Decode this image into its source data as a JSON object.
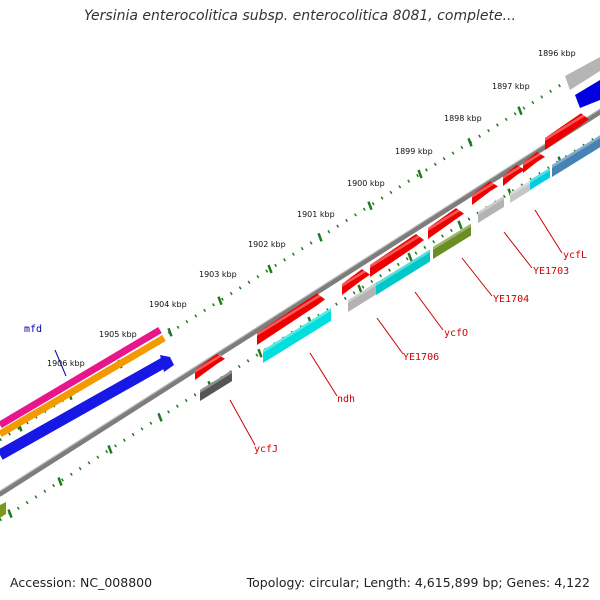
{
  "title": "Yersinia enterocolitica subsp. enterocolitica 8081, complete...",
  "footer": {
    "accession": "Accession: NC_008800",
    "summary": "Topology: circular; Length: 4,615,899 bp; Genes: 4,122"
  },
  "colors": {
    "backbone": "#8c8c8c",
    "ticks": "#1f7a1f",
    "gene_label_red": "#cc0000",
    "gene_label_blue": "#0000aa"
  },
  "kbp_labels": [
    "1896 kbp",
    "1897 kbp",
    "1898 kbp",
    "1899 kbp",
    "1900 kbp",
    "1901 kbp",
    "1902 kbp",
    "1903 kbp",
    "1904 kbp",
    "1905 kbp",
    "1906 kbp"
  ],
  "gene_labels": [
    "mfd",
    "ycfJ",
    "ndh",
    "YE1706",
    "ycfO",
    "YE1704",
    "YE1703",
    "ycfL"
  ]
}
